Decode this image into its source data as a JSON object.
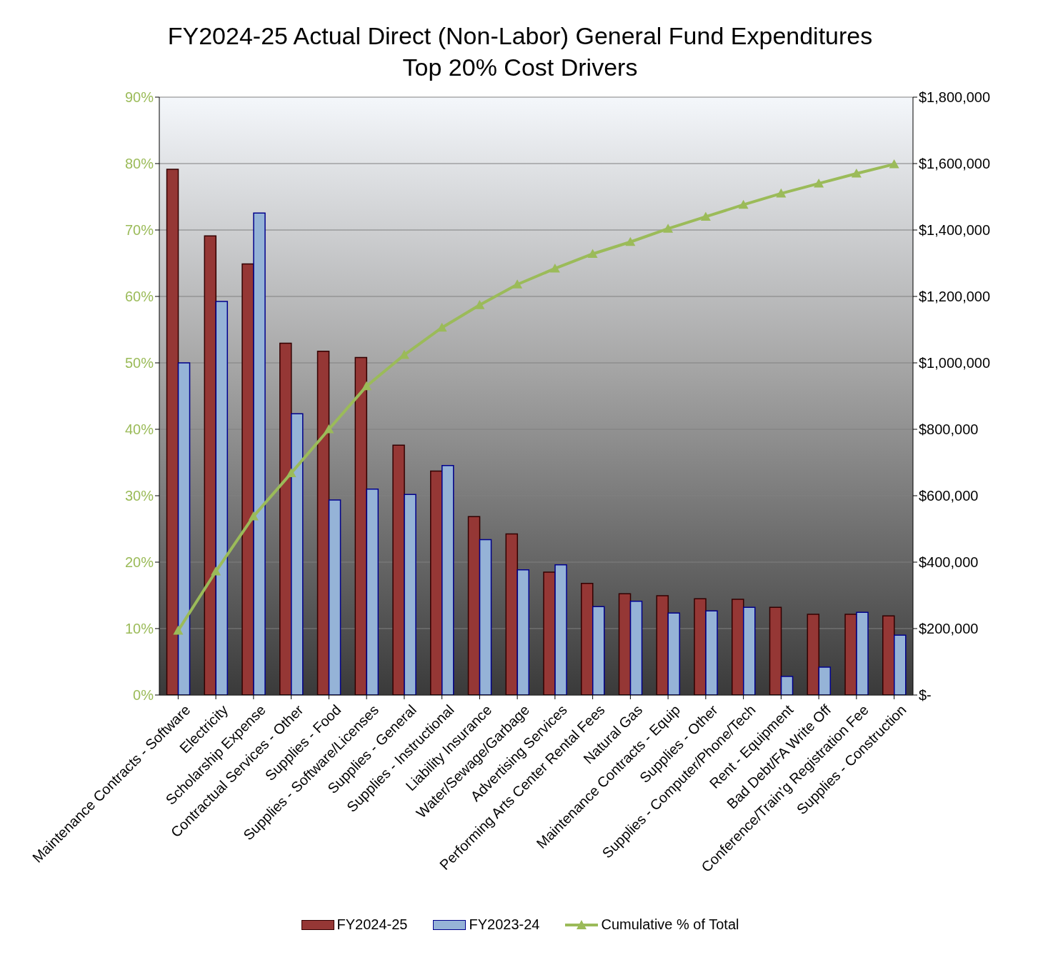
{
  "chart_data": {
    "type": "bar",
    "title": "FY2024-25 Actual Direct (Non-Labor) General Fund Expenditures",
    "subtitle": "Top 20% Cost Drivers",
    "categories": [
      "Maintenance Contracts - Software",
      "Electricity",
      "Scholarship Expense",
      "Contractual Services - Other",
      "Supplies - Food",
      "Supplies - Software/Licenses",
      "Supplies - General",
      "Supplies - Instructional",
      "Liability Insurance",
      "Water/Sewage/Garbage",
      "Advertising Services",
      "Performing Arts Center Rental Fees",
      "Natural Gas",
      "Maintenance Contracts - Equip",
      "Supplies - Other",
      "Supplies - Computer/Phone/Tech",
      "Rent - Equipment",
      "Bad Debt/FA Write Off",
      "Conference/Train'g Registration Fee",
      "Supplies - Construction"
    ],
    "series": [
      {
        "name": "FY2024-25",
        "axis": "y2",
        "color": "#953735",
        "values": [
          1583000,
          1382000,
          1298000,
          1059000,
          1035000,
          1016000,
          752000,
          674000,
          537000,
          485000,
          370000,
          336000,
          305000,
          299000,
          290000,
          288000,
          264000,
          243000,
          243000,
          238000
        ]
      },
      {
        "name": "FY2023-24",
        "axis": "y2",
        "color": "#95b3d7",
        "values": [
          1000000,
          1185000,
          1451000,
          847000,
          587000,
          620000,
          604000,
          691000,
          468000,
          377000,
          392000,
          266000,
          282000,
          247000,
          253000,
          264000,
          56000,
          84000,
          249000,
          180000
        ]
      },
      {
        "name": "Cumulative % of Total",
        "type": "line",
        "axis": "y",
        "color": "#9bbb59",
        "values": [
          9.7,
          18.6,
          26.9,
          33.4,
          40.0,
          46.5,
          51.2,
          55.3,
          58.7,
          61.8,
          64.2,
          66.4,
          68.2,
          70.2,
          72.0,
          73.8,
          75.5,
          77.0,
          78.5,
          79.9
        ]
      }
    ],
    "ylim": [
      0,
      90
    ],
    "yticks": [
      {
        "value": 0,
        "label": "0%"
      },
      {
        "value": 10,
        "label": "10%"
      },
      {
        "value": 20,
        "label": "20%"
      },
      {
        "value": 30,
        "label": "30%"
      },
      {
        "value": 40,
        "label": "40%"
      },
      {
        "value": 50,
        "label": "50%"
      },
      {
        "value": 60,
        "label": "60%"
      },
      {
        "value": 70,
        "label": "70%"
      },
      {
        "value": 80,
        "label": "80%"
      },
      {
        "value": 90,
        "label": "90%"
      }
    ],
    "y2lim": [
      0,
      1800000
    ],
    "y2ticks": [
      {
        "value": 0,
        "label": "$-"
      },
      {
        "value": 200000,
        "label": "$200,000"
      },
      {
        "value": 400000,
        "label": "$400,000"
      },
      {
        "value": 600000,
        "label": "$600,000"
      },
      {
        "value": 800000,
        "label": "$800,000"
      },
      {
        "value": 1000000,
        "label": "$1,000,000"
      },
      {
        "value": 1200000,
        "label": "$1,200,000"
      },
      {
        "value": 1400000,
        "label": "$1,400,000"
      },
      {
        "value": 1600000,
        "label": "$1,600,000"
      },
      {
        "value": 1800000,
        "label": "$1,800,000"
      }
    ],
    "grid": "y",
    "legend": "bottom",
    "marker": "triangle",
    "line_style": "solid"
  }
}
